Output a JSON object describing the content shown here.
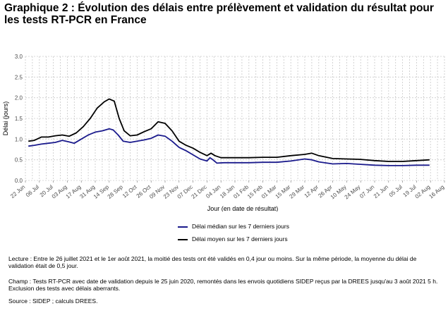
{
  "title": "Graphique 2 : Évolution des délais entre prélèvement et validation du résultat pour les tests RT-PCR en France",
  "chart_data": {
    "type": "line",
    "xlabel": "Jour (en date de résultat)",
    "ylabel": "Délai (jours)",
    "xlim": [
      "2020-06-22",
      "2021-08-16"
    ],
    "ylim": [
      0,
      3.0
    ],
    "yticks": [
      0.0,
      0.5,
      1.0,
      1.5,
      2.0,
      2.5,
      3.0
    ],
    "ytick_labels": [
      "0.0",
      "0.5",
      "1.0",
      "1.5",
      "2.0",
      "2.5",
      "3.0"
    ],
    "xticks": [
      "2020-06-22",
      "2020-07-06",
      "2020-07-20",
      "2020-08-03",
      "2020-08-17",
      "2020-08-31",
      "2020-09-14",
      "2020-09-28",
      "2020-10-12",
      "2020-10-26",
      "2020-11-09",
      "2020-11-23",
      "2020-12-07",
      "2020-12-21",
      "2021-01-04",
      "2021-01-18",
      "2021-02-01",
      "2021-02-15",
      "2021-03-01",
      "2021-03-15",
      "2021-03-29",
      "2021-04-12",
      "2021-04-26",
      "2021-05-10",
      "2021-05-24",
      "2021-06-07",
      "2021-06-21",
      "2021-07-05",
      "2021-07-19",
      "2021-08-02",
      "2021-08-16"
    ],
    "xtick_labels": [
      "22 Jun",
      "06 Jul",
      "20 Jul",
      "03 Aug",
      "17 Aug",
      "31 Aug",
      "14 Sep",
      "28 Sep",
      "12 Oct",
      "26 Oct",
      "09 Nov",
      "23 Nov",
      "07 Dec",
      "21 Dec",
      "04 Jan",
      "18 Jan",
      "01 Feb",
      "15 Feb",
      "01 Mar",
      "15 Mar",
      "29 Mar",
      "12 Apr",
      "26 Apr",
      "10 May",
      "24 May",
      "07 Jun",
      "21 Jun",
      "05 Jul",
      "19 Jul",
      "02 Aug",
      "16 Aug"
    ],
    "grid": true,
    "legend_position": "bottom",
    "series": [
      {
        "name": "Délai médian sur les 7 derniers jours",
        "color": "#1a1a8c",
        "points": [
          [
            "2020-06-25",
            0.83
          ],
          [
            "2020-07-01",
            0.85
          ],
          [
            "2020-07-08",
            0.88
          ],
          [
            "2020-07-15",
            0.9
          ],
          [
            "2020-07-22",
            0.92
          ],
          [
            "2020-07-29",
            0.97
          ],
          [
            "2020-08-05",
            0.93
          ],
          [
            "2020-08-10",
            0.9
          ],
          [
            "2020-08-17",
            1.0
          ],
          [
            "2020-08-24",
            1.1
          ],
          [
            "2020-08-31",
            1.17
          ],
          [
            "2020-09-07",
            1.2
          ],
          [
            "2020-09-14",
            1.25
          ],
          [
            "2020-09-18",
            1.22
          ],
          [
            "2020-09-23",
            1.1
          ],
          [
            "2020-09-28",
            0.95
          ],
          [
            "2020-10-05",
            0.92
          ],
          [
            "2020-10-12",
            0.95
          ],
          [
            "2020-10-19",
            0.98
          ],
          [
            "2020-10-26",
            1.02
          ],
          [
            "2020-11-02",
            1.1
          ],
          [
            "2020-11-09",
            1.07
          ],
          [
            "2020-11-16",
            0.95
          ],
          [
            "2020-11-23",
            0.8
          ],
          [
            "2020-11-30",
            0.72
          ],
          [
            "2020-12-07",
            0.62
          ],
          [
            "2020-12-14",
            0.52
          ],
          [
            "2020-12-21",
            0.47
          ],
          [
            "2020-12-24",
            0.55
          ],
          [
            "2020-12-27",
            0.5
          ],
          [
            "2020-12-31",
            0.42
          ],
          [
            "2021-01-07",
            0.43
          ],
          [
            "2021-01-18",
            0.43
          ],
          [
            "2021-02-01",
            0.43
          ],
          [
            "2021-02-15",
            0.44
          ],
          [
            "2021-03-01",
            0.44
          ],
          [
            "2021-03-15",
            0.47
          ],
          [
            "2021-03-29",
            0.52
          ],
          [
            "2021-04-05",
            0.5
          ],
          [
            "2021-04-12",
            0.45
          ],
          [
            "2021-04-26",
            0.4
          ],
          [
            "2021-05-10",
            0.41
          ],
          [
            "2021-05-24",
            0.39
          ],
          [
            "2021-06-07",
            0.37
          ],
          [
            "2021-06-21",
            0.36
          ],
          [
            "2021-07-05",
            0.36
          ],
          [
            "2021-07-19",
            0.37
          ],
          [
            "2021-08-01",
            0.37
          ]
        ]
      },
      {
        "name": "Délai moyen sur les 7 derniers jours",
        "color": "#000000",
        "points": [
          [
            "2020-06-25",
            0.95
          ],
          [
            "2020-07-01",
            0.97
          ],
          [
            "2020-07-08",
            1.05
          ],
          [
            "2020-07-15",
            1.05
          ],
          [
            "2020-07-22",
            1.08
          ],
          [
            "2020-07-29",
            1.1
          ],
          [
            "2020-08-05",
            1.07
          ],
          [
            "2020-08-12",
            1.15
          ],
          [
            "2020-08-19",
            1.3
          ],
          [
            "2020-08-26",
            1.5
          ],
          [
            "2020-09-02",
            1.75
          ],
          [
            "2020-09-09",
            1.9
          ],
          [
            "2020-09-14",
            1.97
          ],
          [
            "2020-09-19",
            1.92
          ],
          [
            "2020-09-24",
            1.5
          ],
          [
            "2020-09-29",
            1.2
          ],
          [
            "2020-10-05",
            1.08
          ],
          [
            "2020-10-12",
            1.1
          ],
          [
            "2020-10-19",
            1.18
          ],
          [
            "2020-10-26",
            1.25
          ],
          [
            "2020-11-02",
            1.42
          ],
          [
            "2020-11-09",
            1.38
          ],
          [
            "2020-11-16",
            1.2
          ],
          [
            "2020-11-23",
            0.95
          ],
          [
            "2020-11-30",
            0.85
          ],
          [
            "2020-12-07",
            0.78
          ],
          [
            "2020-12-14",
            0.68
          ],
          [
            "2020-12-21",
            0.6
          ],
          [
            "2020-12-25",
            0.66
          ],
          [
            "2020-12-29",
            0.6
          ],
          [
            "2021-01-04",
            0.55
          ],
          [
            "2021-01-18",
            0.55
          ],
          [
            "2021-02-01",
            0.55
          ],
          [
            "2021-02-15",
            0.56
          ],
          [
            "2021-03-01",
            0.56
          ],
          [
            "2021-03-15",
            0.6
          ],
          [
            "2021-03-29",
            0.63
          ],
          [
            "2021-04-05",
            0.66
          ],
          [
            "2021-04-12",
            0.6
          ],
          [
            "2021-04-26",
            0.53
          ],
          [
            "2021-05-10",
            0.52
          ],
          [
            "2021-05-24",
            0.51
          ],
          [
            "2021-06-07",
            0.48
          ],
          [
            "2021-06-21",
            0.46
          ],
          [
            "2021-07-05",
            0.46
          ],
          [
            "2021-07-19",
            0.48
          ],
          [
            "2021-08-01",
            0.5
          ]
        ]
      }
    ]
  },
  "notes": {
    "lecture": "Lecture : Entre le 26 juillet 2021 et le 1er août 2021, la moitié des tests ont été validés en 0,4 jour ou moins. Sur la même période, la moyenne du délai de validation était de 0,5 jour.",
    "champ": "Champ : Tests RT-PCR avec date de validation depuis le 25 juin 2020, remontés dans les envois quotidiens SIDEP reçus par la DREES jusqu'au 3 août 2021 5 h. Exclusion des tests avec délais aberrants.",
    "source": "Source : SIDEP ; calculs DREES."
  }
}
